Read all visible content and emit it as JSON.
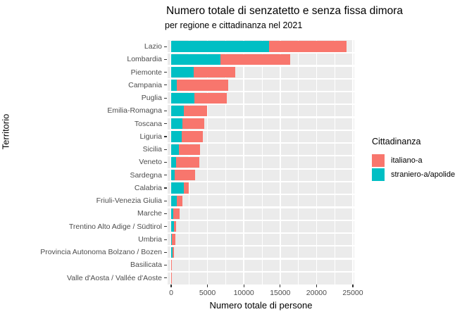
{
  "chart_data": {
    "type": "bar",
    "orientation": "horizontal",
    "stacked": true,
    "grid": true,
    "panel_bg": "#EBEBEB",
    "gridline_color": "#ffffff",
    "title": "Numero totale di senzatetto e senza fissa dimora",
    "subtitle": "per regione e cittadinanza nel 2021",
    "xlabel": "Numero totale di persone",
    "ylabel": "Territorio",
    "xlim": [
      0,
      25650
    ],
    "x_ticks": [
      0,
      5000,
      10000,
      15000,
      20000,
      25000
    ],
    "x_minor_step": 2500,
    "categories": [
      "Lazio",
      "Lombardia",
      "Piemonte",
      "Campania",
      "Puglia",
      "Emilia-Romagna",
      "Toscana",
      "Liguria",
      "Sicilia",
      "Veneto",
      "Sardegna",
      "Calabria",
      "Friuli-Venezia Giulia",
      "Marche",
      "Trentino Alto Adige / Südtirol",
      "Umbria",
      "Provincia Autonoma Bolzano / Bozen",
      "Basilicata",
      "Valle d'Aosta / Vallée d'Aoste"
    ],
    "series": [
      {
        "name": "straniero-a/apolide",
        "color": "#00BFC4",
        "values": [
          13500,
          6800,
          3100,
          800,
          3200,
          1700,
          1550,
          1450,
          1050,
          700,
          500,
          1750,
          780,
          250,
          350,
          80,
          190,
          20,
          10
        ]
      },
      {
        "name": "italiano-a",
        "color": "#F8766D",
        "values": [
          10600,
          9600,
          5700,
          7050,
          4450,
          3250,
          3000,
          2900,
          2950,
          3150,
          2750,
          680,
          770,
          960,
          300,
          520,
          200,
          90,
          90
        ]
      }
    ],
    "legend": {
      "title": "Cittadinanza",
      "position": "right",
      "entries": [
        {
          "label": "italiano-a",
          "color": "#F8766D"
        },
        {
          "label": "straniero-a/apolide",
          "color": "#00BFC4"
        }
      ]
    }
  }
}
